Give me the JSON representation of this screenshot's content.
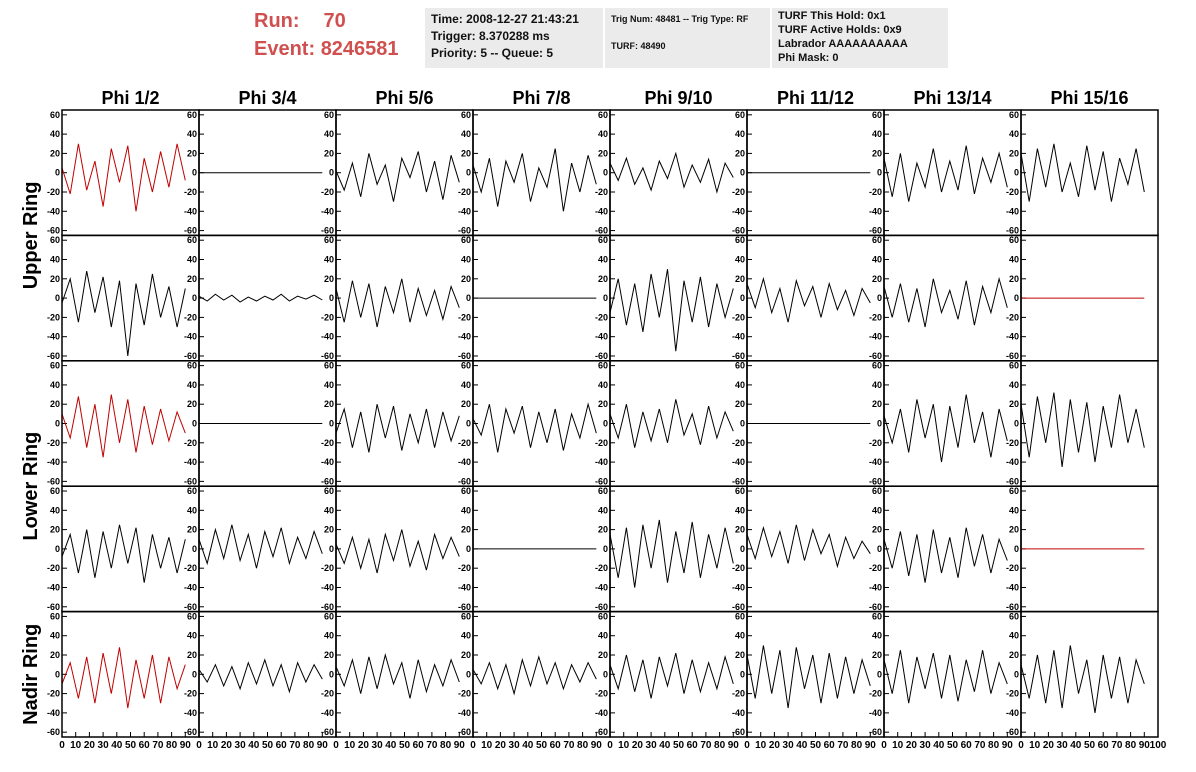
{
  "header": {
    "run_label": "Run:",
    "run": "70",
    "event_label": "Event:",
    "event": "8246581",
    "info_boxes": [
      [
        "Time: 2008-12-27 21:43:21",
        "Trigger: 8.370288 ms",
        "Priority: 5 -- Queue: 5"
      ],
      [
        "Trig Num: 48481 -- Trig Type: RF",
        "TURF: 48490"
      ],
      [
        "TURF This Hold: 0x1",
        "TURF Active Holds: 0x9",
        "Labrador AAAAAAAAAA",
        "Phi Mask: 0"
      ]
    ]
  },
  "columns": [
    "Phi 1/2",
    "Phi 3/4",
    "Phi 5/6",
    "Phi 7/8",
    "Phi 9/10",
    "Phi 11/12",
    "Phi 13/14",
    "Phi 15/16"
  ],
  "rings": [
    "Upper Ring",
    "Lower Ring",
    "Nadir Ring"
  ],
  "axes": {
    "xlim": [
      0,
      100
    ],
    "xticks": [
      0,
      10,
      20,
      30,
      40,
      50,
      60,
      70,
      80,
      90,
      100
    ],
    "ylim": [
      -65,
      65
    ],
    "yticks": [
      -60,
      -40,
      -20,
      0,
      20,
      40,
      60
    ]
  },
  "x": [
    0,
    6,
    12,
    18,
    24,
    30,
    36,
    42,
    48,
    54,
    60,
    66,
    72,
    78,
    84,
    90
  ],
  "panels": [
    [
      {
        "color": "#c00000",
        "values": [
          5,
          -22,
          30,
          -18,
          12,
          -35,
          25,
          -10,
          28,
          -40,
          15,
          -20,
          22,
          -15,
          30,
          -8
        ]
      },
      {
        "color": "#000000",
        "values": [
          0,
          0,
          0,
          0,
          0,
          0,
          0,
          0,
          0,
          0,
          0,
          0,
          0,
          0,
          0,
          0
        ]
      },
      {
        "color": "#000000",
        "values": [
          2,
          -18,
          10,
          -25,
          20,
          -12,
          8,
          -30,
          15,
          -5,
          22,
          -20,
          12,
          -28,
          18,
          -10
        ]
      },
      {
        "color": "#000000",
        "values": [
          8,
          -20,
          15,
          -35,
          12,
          -10,
          20,
          -30,
          5,
          -15,
          25,
          -40,
          10,
          -20,
          18,
          -12
        ]
      },
      {
        "color": "#000000",
        "values": [
          10,
          -8,
          15,
          -12,
          5,
          -18,
          12,
          -6,
          20,
          -15,
          8,
          -10,
          14,
          -20,
          10,
          -5
        ]
      },
      {
        "color": "#000000",
        "values": [
          0,
          0,
          0,
          0,
          0,
          0,
          0,
          0,
          0,
          0,
          0,
          0,
          0,
          0,
          0,
          0
        ]
      },
      {
        "color": "#000000",
        "values": [
          15,
          -25,
          20,
          -30,
          10,
          -15,
          25,
          -20,
          12,
          -18,
          28,
          -22,
          15,
          -10,
          20,
          -15
        ]
      },
      {
        "color": "#000000",
        "values": [
          20,
          -30,
          25,
          -15,
          30,
          -20,
          10,
          -25,
          28,
          -18,
          22,
          -30,
          15,
          -12,
          25,
          -20
        ]
      }
    ],
    [
      {
        "color": "#000000",
        "values": [
          -5,
          20,
          -25,
          28,
          -15,
          22,
          -30,
          18,
          -60,
          15,
          -28,
          25,
          -20,
          12,
          -30,
          10
        ]
      },
      {
        "color": "#000000",
        "values": [
          2,
          -3,
          4,
          -2,
          3,
          -4,
          1,
          -3,
          2,
          -2,
          4,
          -3,
          2,
          -1,
          3,
          -2
        ]
      },
      {
        "color": "#000000",
        "values": [
          10,
          -25,
          18,
          -20,
          15,
          -30,
          12,
          -15,
          20,
          -25,
          10,
          -18,
          8,
          -22,
          12,
          -10
        ]
      },
      {
        "color": "#000000",
        "values": [
          0,
          0,
          0,
          0,
          0,
          0,
          0,
          0,
          0,
          0,
          0,
          0,
          0,
          0,
          0,
          0
        ]
      },
      {
        "color": "#000000",
        "values": [
          -15,
          20,
          -28,
          15,
          -35,
          25,
          -20,
          30,
          -55,
          18,
          -25,
          22,
          -30,
          15,
          -20,
          10
        ]
      },
      {
        "color": "#000000",
        "values": [
          15,
          -10,
          20,
          -15,
          10,
          -25,
          18,
          -8,
          12,
          -20,
          15,
          -12,
          8,
          -18,
          10,
          -5
        ]
      },
      {
        "color": "#000000",
        "values": [
          12,
          -20,
          15,
          -25,
          10,
          -30,
          20,
          -15,
          8,
          -22,
          18,
          -28,
          12,
          -15,
          20,
          -10
        ]
      },
      {
        "color": "#c00000",
        "values": [
          0,
          0,
          0,
          0,
          0,
          0,
          0,
          0,
          0,
          0,
          0,
          0,
          0,
          0,
          0,
          0
        ]
      }
    ],
    [
      {
        "color": "#c00000",
        "values": [
          10,
          -15,
          28,
          -25,
          20,
          -35,
          30,
          -20,
          25,
          -30,
          18,
          -22,
          15,
          -18,
          12,
          -10
        ]
      },
      {
        "color": "#000000",
        "values": [
          0,
          0,
          0,
          0,
          0,
          0,
          0,
          0,
          0,
          0,
          0,
          0,
          0,
          0,
          0,
          0
        ]
      },
      {
        "color": "#000000",
        "values": [
          -10,
          15,
          -25,
          12,
          -30,
          20,
          -15,
          18,
          -28,
          10,
          -20,
          15,
          -25,
          12,
          -18,
          8
        ]
      },
      {
        "color": "#000000",
        "values": [
          5,
          -12,
          20,
          -30,
          15,
          -10,
          18,
          -25,
          12,
          -20,
          15,
          -28,
          10,
          -15,
          20,
          -10
        ]
      },
      {
        "color": "#000000",
        "values": [
          10,
          -15,
          20,
          -25,
          12,
          -18,
          15,
          -20,
          25,
          -12,
          10,
          -22,
          18,
          -15,
          12,
          -8
        ]
      },
      {
        "color": "#000000",
        "values": [
          0,
          0,
          0,
          0,
          0,
          0,
          0,
          0,
          0,
          0,
          0,
          0,
          0,
          0,
          0,
          0
        ]
      },
      {
        "color": "#000000",
        "values": [
          8,
          -20,
          15,
          -30,
          25,
          -15,
          20,
          -40,
          18,
          -25,
          30,
          -20,
          12,
          -35,
          15,
          -18
        ]
      },
      {
        "color": "#000000",
        "values": [
          20,
          -35,
          28,
          -20,
          32,
          -45,
          25,
          -30,
          22,
          -40,
          18,
          -25,
          30,
          -20,
          15,
          -25
        ]
      }
    ],
    [
      {
        "color": "#000000",
        "values": [
          -8,
          15,
          -25,
          20,
          -30,
          18,
          -20,
          25,
          -15,
          22,
          -35,
          15,
          -20,
          12,
          -25,
          10
        ]
      },
      {
        "color": "#000000",
        "values": [
          10,
          -15,
          20,
          -10,
          25,
          -12,
          15,
          -20,
          18,
          -8,
          22,
          -15,
          12,
          -10,
          18,
          -5
        ]
      },
      {
        "color": "#000000",
        "values": [
          5,
          -15,
          12,
          -20,
          10,
          -25,
          15,
          -12,
          20,
          -18,
          8,
          -22,
          15,
          -10,
          12,
          -8
        ]
      },
      {
        "color": "#000000",
        "values": [
          0,
          0,
          0,
          0,
          0,
          0,
          0,
          0,
          0,
          0,
          0,
          0,
          0,
          0,
          0,
          0
        ]
      },
      {
        "color": "#000000",
        "values": [
          15,
          -30,
          22,
          -40,
          25,
          -20,
          30,
          -35,
          18,
          -25,
          28,
          -30,
          15,
          -20,
          22,
          -15
        ]
      },
      {
        "color": "#000000",
        "values": [
          15,
          -10,
          22,
          -8,
          18,
          -15,
          25,
          -12,
          20,
          -5,
          15,
          -18,
          12,
          -10,
          8,
          -5
        ]
      },
      {
        "color": "#000000",
        "values": [
          10,
          -20,
          18,
          -28,
          15,
          -35,
          20,
          -25,
          12,
          -30,
          22,
          -18,
          15,
          -25,
          10,
          -12
        ]
      },
      {
        "color": "#c00000",
        "values": [
          0,
          0,
          0,
          0,
          0,
          0,
          0,
          0,
          0,
          0,
          0,
          0,
          0,
          0,
          0,
          0
        ]
      }
    ],
    [
      {
        "color": "#c00000",
        "values": [
          -10,
          12,
          -25,
          18,
          -30,
          22,
          -20,
          28,
          -35,
          15,
          -25,
          20,
          -30,
          18,
          -15,
          10
        ]
      },
      {
        "color": "#000000",
        "values": [
          5,
          -8,
          10,
          -12,
          8,
          -15,
          12,
          -10,
          15,
          -12,
          10,
          -18,
          12,
          -8,
          10,
          -5
        ]
      },
      {
        "color": "#000000",
        "values": [
          8,
          -12,
          15,
          -20,
          18,
          -15,
          20,
          -10,
          12,
          -25,
          15,
          -18,
          10,
          -12,
          15,
          -8
        ]
      },
      {
        "color": "#000000",
        "values": [
          5,
          -10,
          12,
          -15,
          10,
          -20,
          15,
          -12,
          18,
          -10,
          12,
          -15,
          10,
          -8,
          12,
          -5
        ]
      },
      {
        "color": "#000000",
        "values": [
          10,
          -15,
          20,
          -18,
          15,
          -25,
          18,
          -12,
          22,
          -20,
          15,
          -18,
          12,
          -15,
          18,
          -10
        ]
      },
      {
        "color": "#000000",
        "values": [
          20,
          -25,
          30,
          -20,
          25,
          -35,
          28,
          -15,
          20,
          -30,
          22,
          -25,
          18,
          -20,
          15,
          -12
        ]
      },
      {
        "color": "#000000",
        "values": [
          15,
          -20,
          25,
          -30,
          18,
          -15,
          22,
          -25,
          20,
          -28,
          15,
          -18,
          25,
          -20,
          12,
          -10
        ]
      },
      {
        "color": "#000000",
        "values": [
          10,
          -25,
          20,
          -30,
          25,
          -35,
          30,
          -20,
          15,
          -40,
          20,
          -25,
          18,
          -30,
          15,
          -10
        ]
      }
    ]
  ]
}
